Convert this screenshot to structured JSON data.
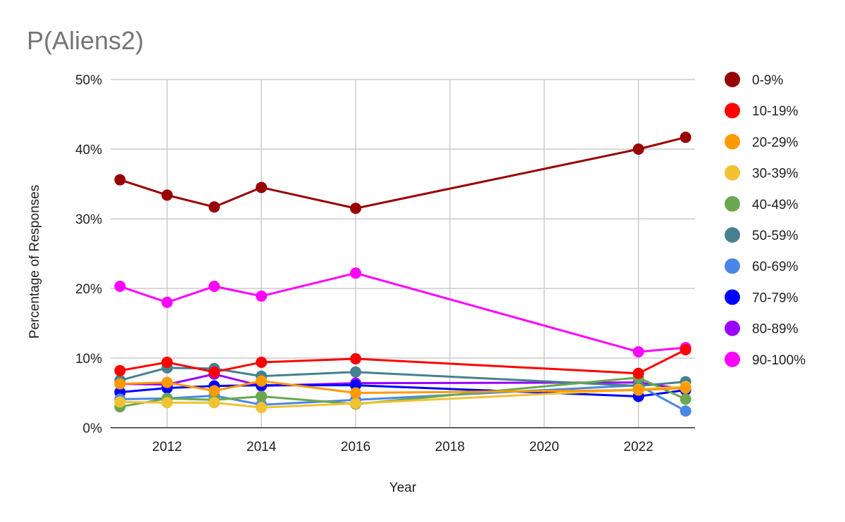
{
  "chart_data": {
    "type": "line",
    "title": "P(Aliens2)",
    "xlabel": "Year",
    "ylabel": "Percentage of Responses",
    "x": [
      2011,
      2012,
      2013,
      2014,
      2016,
      2022,
      2023
    ],
    "xlim": [
      2010.8,
      2023.2
    ],
    "ylim": [
      0,
      50
    ],
    "x_ticks": [
      2012,
      2014,
      2016,
      2018,
      2020,
      2022
    ],
    "x_tick_labels": [
      "2012",
      "2014",
      "2016",
      "2018",
      "2020",
      "2022"
    ],
    "y_ticks": [
      0,
      10,
      20,
      30,
      40,
      50
    ],
    "y_tick_labels": [
      "0%",
      "10%",
      "20%",
      "30%",
      "40%",
      "50%"
    ],
    "grid": true,
    "legend_position": "right",
    "series": [
      {
        "name": "0-9%",
        "color": "#990000",
        "values": [
          35.6,
          33.4,
          31.7,
          34.5,
          31.5,
          40.0,
          41.7
        ]
      },
      {
        "name": "10-19%",
        "color": "#ff0000",
        "values": [
          8.2,
          9.4,
          8.0,
          9.4,
          9.9,
          7.8,
          11.2
        ]
      },
      {
        "name": "20-29%",
        "color": "#ff9900",
        "values": [
          6.3,
          6.5,
          5.3,
          6.7,
          5.0,
          5.4,
          5.7
        ]
      },
      {
        "name": "30-39%",
        "color": "#f1c232",
        "values": [
          3.7,
          3.6,
          3.6,
          2.9,
          3.5,
          5.5,
          5.9
        ]
      },
      {
        "name": "40-49%",
        "color": "#6aa84f",
        "values": [
          3.0,
          4.2,
          4.0,
          4.5,
          3.4,
          7.2,
          4.1
        ]
      },
      {
        "name": "50-59%",
        "color": "#45818e",
        "values": [
          6.8,
          8.6,
          8.5,
          7.4,
          8.0,
          6.0,
          6.6
        ]
      },
      {
        "name": "60-69%",
        "color": "#4a86e8",
        "values": [
          4.1,
          4.2,
          4.6,
          3.3,
          4.0,
          6.1,
          2.4
        ]
      },
      {
        "name": "70-79%",
        "color": "#0000ff",
        "values": [
          5.1,
          5.7,
          6.0,
          6.1,
          6.1,
          4.5,
          5.4
        ]
      },
      {
        "name": "80-89%",
        "color": "#9900ff",
        "values": [
          6.3,
          6.2,
          7.7,
          6.0,
          6.4,
          6.5,
          5.5
        ]
      },
      {
        "name": "90-100%",
        "color": "#ff00ff",
        "values": [
          20.3,
          18.0,
          20.3,
          18.9,
          22.2,
          10.9,
          11.5
        ]
      }
    ]
  }
}
